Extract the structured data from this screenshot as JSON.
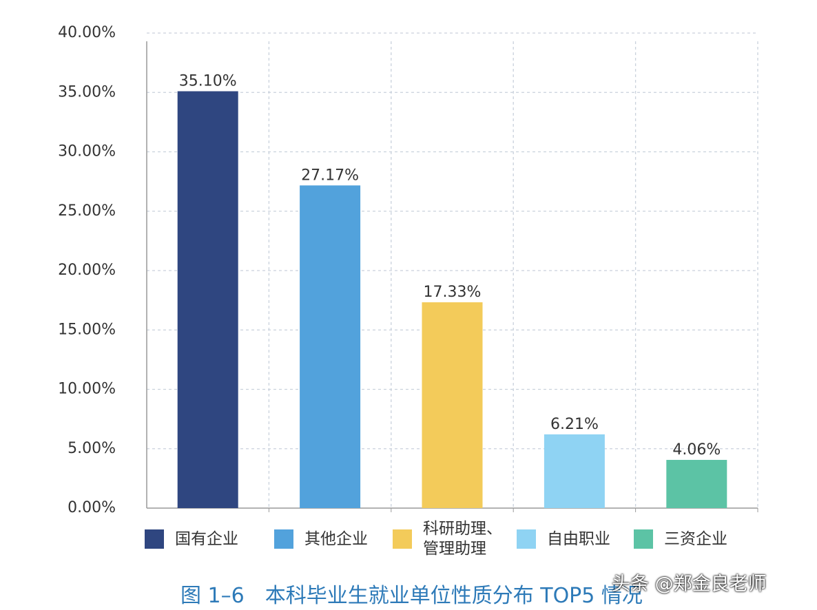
{
  "chart_data": {
    "type": "bar",
    "title": "图 1–6　本科毕业生就业单位性质分布 TOP5 情况",
    "watermark": "头条 @郑金良老师",
    "categories": [
      "国有企业",
      "其他企业",
      "科研助理、\n管理助理",
      "自由职业",
      "三资企业"
    ],
    "values": [
      35.1,
      27.17,
      17.33,
      6.21,
      4.06
    ],
    "value_labels": [
      "35.10%",
      "27.17%",
      "17.33%",
      "6.21%",
      "4.06%"
    ],
    "colors": [
      "#2f4680",
      "#52a2dc",
      "#f3cb5a",
      "#8fd3f3",
      "#5cc3a5"
    ],
    "ylim": [
      0,
      40
    ],
    "yticks": [
      {
        "value": 0,
        "label": "0.00%"
      },
      {
        "value": 5,
        "label": "5.00%"
      },
      {
        "value": 10,
        "label": "10.00%"
      },
      {
        "value": 15,
        "label": "15.00%"
      },
      {
        "value": 20,
        "label": "20.00%"
      },
      {
        "value": 25,
        "label": "25.00%"
      },
      {
        "value": 30,
        "label": "30.00%"
      },
      {
        "value": 35,
        "label": "35.00%"
      },
      {
        "value": 40,
        "label": "40.00%"
      }
    ],
    "grid": true
  }
}
